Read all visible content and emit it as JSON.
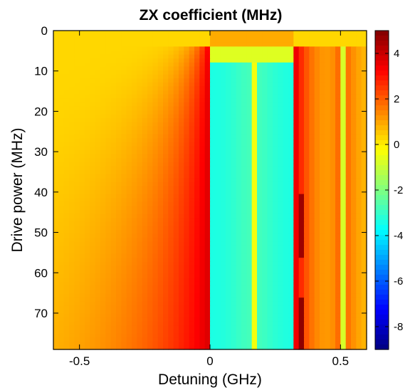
{
  "chart_data": {
    "type": "heatmap",
    "title": "ZX coefficient (MHz)",
    "xlabel": "Detuning (GHz)",
    "ylabel": "Drive power (MHz)",
    "xlim": [
      -0.6,
      0.6
    ],
    "ylim": [
      0,
      79
    ],
    "y_reversed": true,
    "x_ticks": [
      -0.5,
      0,
      0.5
    ],
    "x_tick_labels": [
      "-0.5",
      "0",
      "0.5"
    ],
    "y_ticks": [
      0,
      10,
      20,
      30,
      40,
      50,
      60,
      70
    ],
    "y_tick_labels": [
      "0",
      "10",
      "20",
      "30",
      "40",
      "50",
      "60",
      "70"
    ],
    "colormap": "jet",
    "clim": [
      -9,
      5
    ],
    "colorbar_ticks": [
      4,
      2,
      0,
      -2,
      -4,
      -6,
      -8
    ],
    "colorbar_tick_labels": [
      "4",
      "2",
      "0",
      "-2",
      "-4",
      "-6",
      "-8"
    ],
    "grid": false,
    "colorbar_placement": "right",
    "x_resolution_ghz": 0.02,
    "power_row_count": 80,
    "features": {
      "resonances_ghz": [
        0.0,
        0.33,
        0.5
      ],
      "far_field_value": 0.3,
      "near_resonance_peak": 3.8,
      "inner_band_value": -3.4,
      "low_power_inner_value": -0.7
    }
  }
}
